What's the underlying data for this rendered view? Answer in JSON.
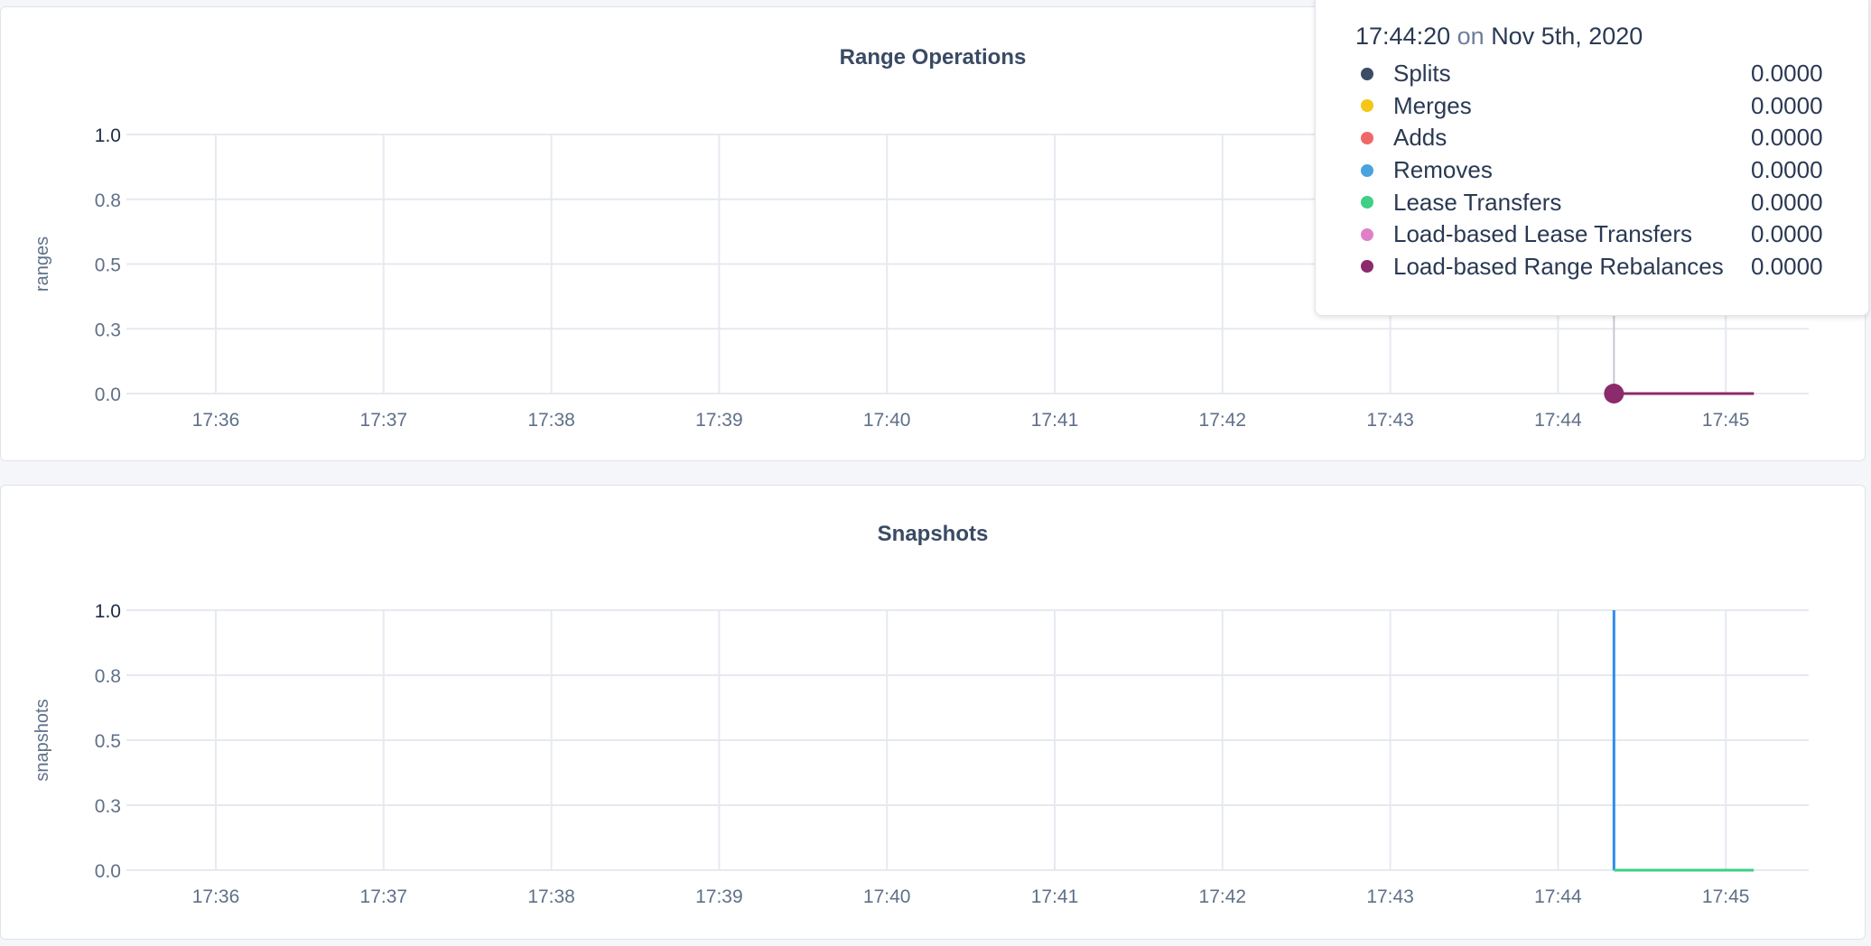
{
  "chart_data": [
    {
      "type": "line",
      "title": "Range Operations",
      "ylabel": "ranges",
      "ylim": [
        0,
        1
      ],
      "yticks": [
        0,
        0.25,
        0.5,
        0.75,
        1
      ],
      "ytick_labels": [
        "0.0",
        "0.3",
        "0.5",
        "0.8",
        "1.0"
      ],
      "xtick_labels": [
        "17:36",
        "17:37",
        "17:38",
        "17:39",
        "17:40",
        "17:41",
        "17:42",
        "17:43",
        "17:44",
        "17:45"
      ],
      "grid": true,
      "series": [
        {
          "name": "Splits",
          "color": "#3d4c66",
          "x": [
            "17:44:20",
            "17:45:10"
          ],
          "values": [
            0,
            0
          ]
        },
        {
          "name": "Merges",
          "color": "#f5c518",
          "x": [
            "17:44:20",
            "17:45:10"
          ],
          "values": [
            0,
            0
          ]
        },
        {
          "name": "Adds",
          "color": "#f06767",
          "x": [
            "17:44:20",
            "17:45:10"
          ],
          "values": [
            0,
            0
          ]
        },
        {
          "name": "Removes",
          "color": "#4aa3df",
          "x": [
            "17:44:20",
            "17:45:10"
          ],
          "values": [
            0,
            0
          ]
        },
        {
          "name": "Lease Transfers",
          "color": "#3fcf86",
          "x": [
            "17:44:20",
            "17:45:10"
          ],
          "values": [
            0,
            0
          ]
        },
        {
          "name": "Load-based Lease Transfers",
          "color": "#e07fc8",
          "x": [
            "17:44:20",
            "17:45:10"
          ],
          "values": [
            0,
            0
          ]
        },
        {
          "name": "Load-based Range Rebalances",
          "color": "#8b2b6b",
          "x": [
            "17:44:20",
            "17:45:10"
          ],
          "values": [
            0,
            0
          ]
        }
      ],
      "hover": {
        "time": "17:44:20",
        "on": "on",
        "date": "Nov 5th, 2020",
        "values": [
          "0.0000",
          "0.0000",
          "0.0000",
          "0.0000",
          "0.0000",
          "0.0000",
          "0.0000"
        ]
      }
    },
    {
      "type": "line",
      "title": "Snapshots",
      "ylabel": "snapshots",
      "ylim": [
        0,
        1
      ],
      "yticks": [
        0,
        0.25,
        0.5,
        0.75,
        1
      ],
      "ytick_labels": [
        "0.0",
        "0.3",
        "0.5",
        "0.8",
        "1.0"
      ],
      "xtick_labels": [
        "17:36",
        "17:37",
        "17:38",
        "17:39",
        "17:40",
        "17:41",
        "17:42",
        "17:43",
        "17:44",
        "17:45"
      ],
      "grid": true,
      "series": [
        {
          "color": "#2e8cf0",
          "x": [
            "17:44:20",
            "17:44:20"
          ],
          "values": [
            1,
            0
          ]
        },
        {
          "color": "#3fcf86",
          "x": [
            "17:44:20",
            "17:45:10"
          ],
          "values": [
            0,
            0
          ]
        }
      ]
    }
  ]
}
